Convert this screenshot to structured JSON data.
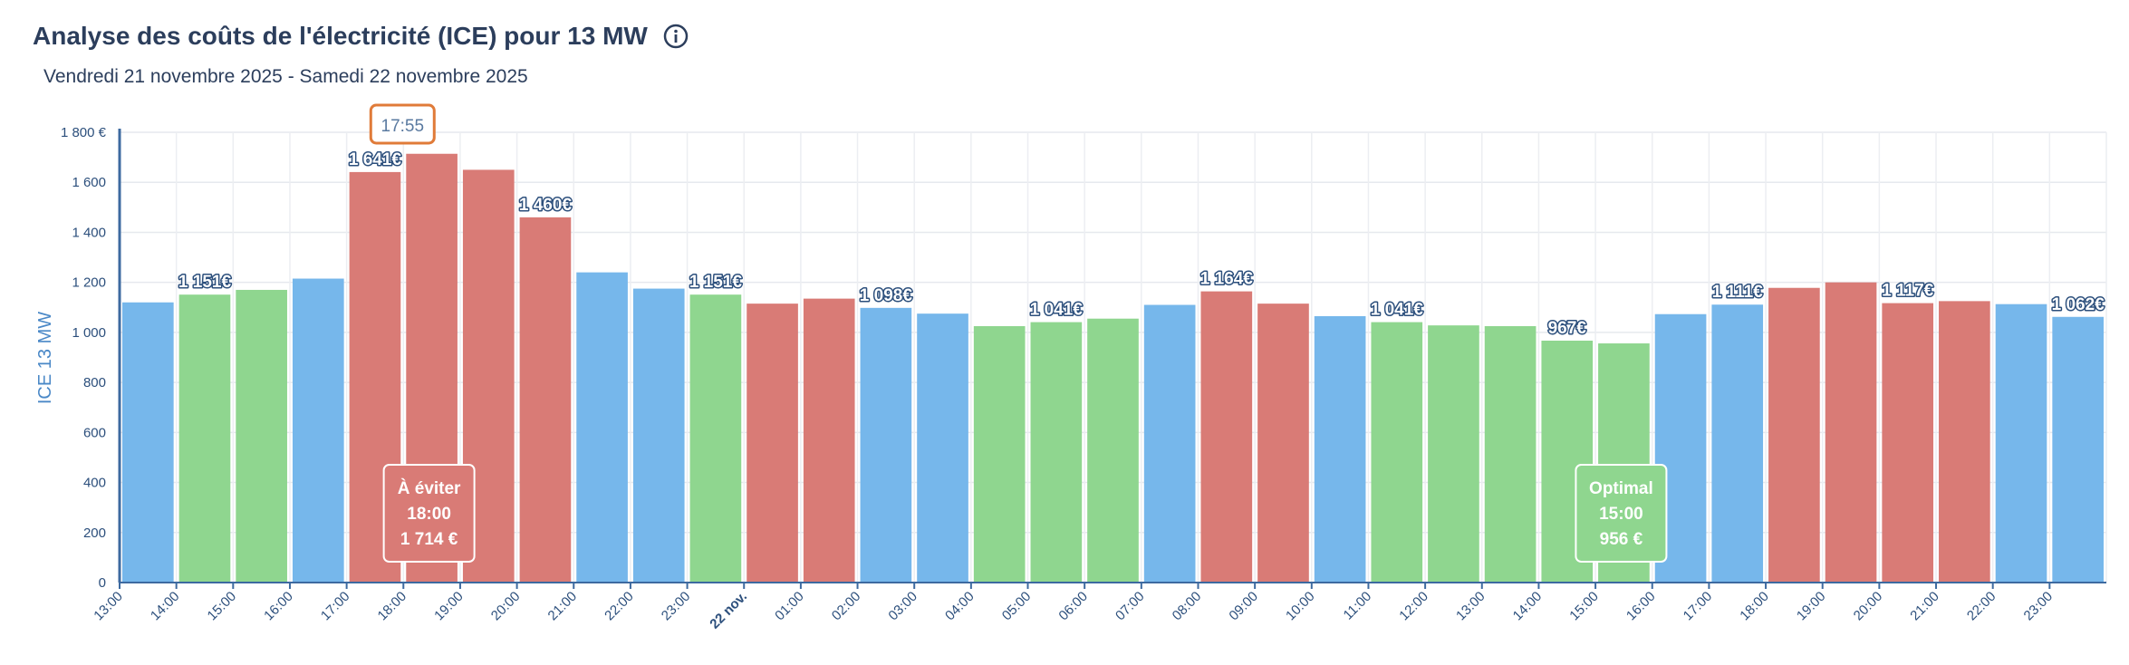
{
  "header": {
    "title": "Analyse des coûts de l'électricité (ICE) pour 13 MW",
    "subtitle": "Vendredi 21 novembre 2025 - Samedi 22 novembre 2025",
    "info_icon": "info-icon"
  },
  "colors": {
    "blue": "#76b7eb",
    "green": "#8fd68f",
    "red": "#d97b76",
    "axis": "#3d6aa0",
    "cursor": "#e07b39"
  },
  "chart_data": {
    "type": "bar",
    "ylabel": "ICE 13 MW",
    "ylim": [
      0,
      1800
    ],
    "yticks": [
      "0",
      "200",
      "400",
      "600",
      "800",
      "1 000",
      "1 200",
      "1 400",
      "1 600",
      "1 800 €"
    ],
    "grid": true,
    "categories": [
      "13:00",
      "14:00",
      "15:00",
      "16:00",
      "17:00",
      "18:00",
      "19:00",
      "20:00",
      "21:00",
      "22:00",
      "23:00",
      "22 nov.",
      "01:00",
      "02:00",
      "03:00",
      "04:00",
      "05:00",
      "06:00",
      "07:00",
      "08:00",
      "09:00",
      "10:00",
      "11:00",
      "12:00",
      "13:00",
      "14:00",
      "15:00",
      "16:00",
      "17:00",
      "18:00",
      "19:00",
      "20:00",
      "21:00",
      "22:00",
      "23:00"
    ],
    "values": [
      1120,
      1151,
      1170,
      1215,
      1641,
      1714,
      1650,
      1460,
      1240,
      1175,
      1151,
      1115,
      1135,
      1098,
      1075,
      1025,
      1041,
      1055,
      1110,
      1164,
      1115,
      1065,
      1041,
      1028,
      1025,
      967,
      956,
      1073,
      1111,
      1178,
      1200,
      1117,
      1125,
      1113,
      1062
    ],
    "levels": [
      "blue",
      "green",
      "green",
      "blue",
      "red",
      "red",
      "red",
      "red",
      "blue",
      "blue",
      "green",
      "red",
      "red",
      "blue",
      "blue",
      "green",
      "green",
      "green",
      "blue",
      "red",
      "red",
      "blue",
      "green",
      "green",
      "green",
      "green",
      "green",
      "blue",
      "blue",
      "red",
      "red",
      "red",
      "red",
      "blue",
      "blue"
    ],
    "data_labels": [
      {
        "index": 1,
        "text": "1 151€"
      },
      {
        "index": 4,
        "text": "1 641€"
      },
      {
        "index": 7,
        "text": "1 460€"
      },
      {
        "index": 10,
        "text": "1 151€"
      },
      {
        "index": 13,
        "text": "1 098€"
      },
      {
        "index": 16,
        "text": "1 041€"
      },
      {
        "index": 19,
        "text": "1 164€"
      },
      {
        "index": 22,
        "text": "1 041€"
      },
      {
        "index": 25,
        "text": "967€"
      },
      {
        "index": 28,
        "text": "1 111€"
      },
      {
        "index": 31,
        "text": "1 117€"
      },
      {
        "index": 34,
        "text": "1 062€"
      }
    ],
    "cursor": {
      "label": "17:55",
      "index": 5
    },
    "annotations": [
      {
        "index": 5,
        "level": "red",
        "lines": [
          "À éviter",
          "18:00",
          "1 714 €"
        ]
      },
      {
        "index": 26,
        "level": "green",
        "lines": [
          "Optimal",
          "15:00",
          "956 €"
        ]
      }
    ]
  }
}
